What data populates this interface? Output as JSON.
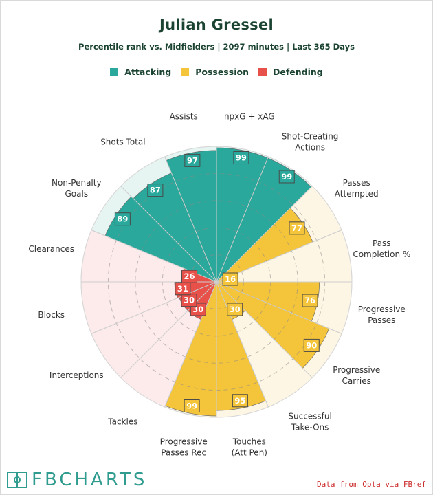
{
  "header": {
    "title": "Julian Gressel",
    "subtitle": "Percentile rank vs. Midfielders | 2097 minutes | Last 365 Days"
  },
  "legend": [
    {
      "label": "Attacking",
      "color": "#2aa89b"
    },
    {
      "label": "Possession",
      "color": "#f4c43a"
    },
    {
      "label": "Defending",
      "color": "#e8514a"
    }
  ],
  "colors": {
    "Attacking": {
      "fill": "#2aa89b",
      "bg": "#e6f4f2"
    },
    "Possession": {
      "fill": "#f4c43a",
      "bg": "#fef6e4"
    },
    "Defending": {
      "fill": "#e8514a",
      "bg": "#fdeaea"
    }
  },
  "chart_data": {
    "type": "polar-bar",
    "max": 100,
    "rings": [
      20,
      40,
      60,
      80
    ],
    "categories": [
      {
        "label": "npxG + xAG",
        "group": "Attacking",
        "value": 99
      },
      {
        "label": "Shot-Creating Actions",
        "group": "Attacking",
        "value": 99
      },
      {
        "label": "Passes Attempted",
        "group": "Possession",
        "value": 77
      },
      {
        "label": "Pass Completion %",
        "group": "Possession",
        "value": 16
      },
      {
        "label": "Progressive Passes",
        "group": "Possession",
        "value": 76
      },
      {
        "label": "Progressive Carries",
        "group": "Possession",
        "value": 90
      },
      {
        "label": "Successful Take-Ons",
        "group": "Possession",
        "value": 30
      },
      {
        "label": "Touches (Att Pen)",
        "group": "Possession",
        "value": 95
      },
      {
        "label": "Progressive Passes Rec",
        "group": "Possession",
        "value": 99
      },
      {
        "label": "Tackles",
        "group": "Defending",
        "value": 30
      },
      {
        "label": "Interceptions",
        "group": "Defending",
        "value": 30
      },
      {
        "label": "Blocks",
        "group": "Defending",
        "value": 31
      },
      {
        "label": "Clearances",
        "group": "Defending",
        "value": 26
      },
      {
        "label": "Non-Penalty Goals",
        "group": "Attacking",
        "value": 89
      },
      {
        "label": "Shots Total",
        "group": "Attacking",
        "value": 87
      },
      {
        "label": "Assists",
        "group": "Attacking",
        "value": 97
      }
    ]
  },
  "footer": {
    "brand": "FBCHARTS",
    "source": "Data from Opta via FBref"
  }
}
